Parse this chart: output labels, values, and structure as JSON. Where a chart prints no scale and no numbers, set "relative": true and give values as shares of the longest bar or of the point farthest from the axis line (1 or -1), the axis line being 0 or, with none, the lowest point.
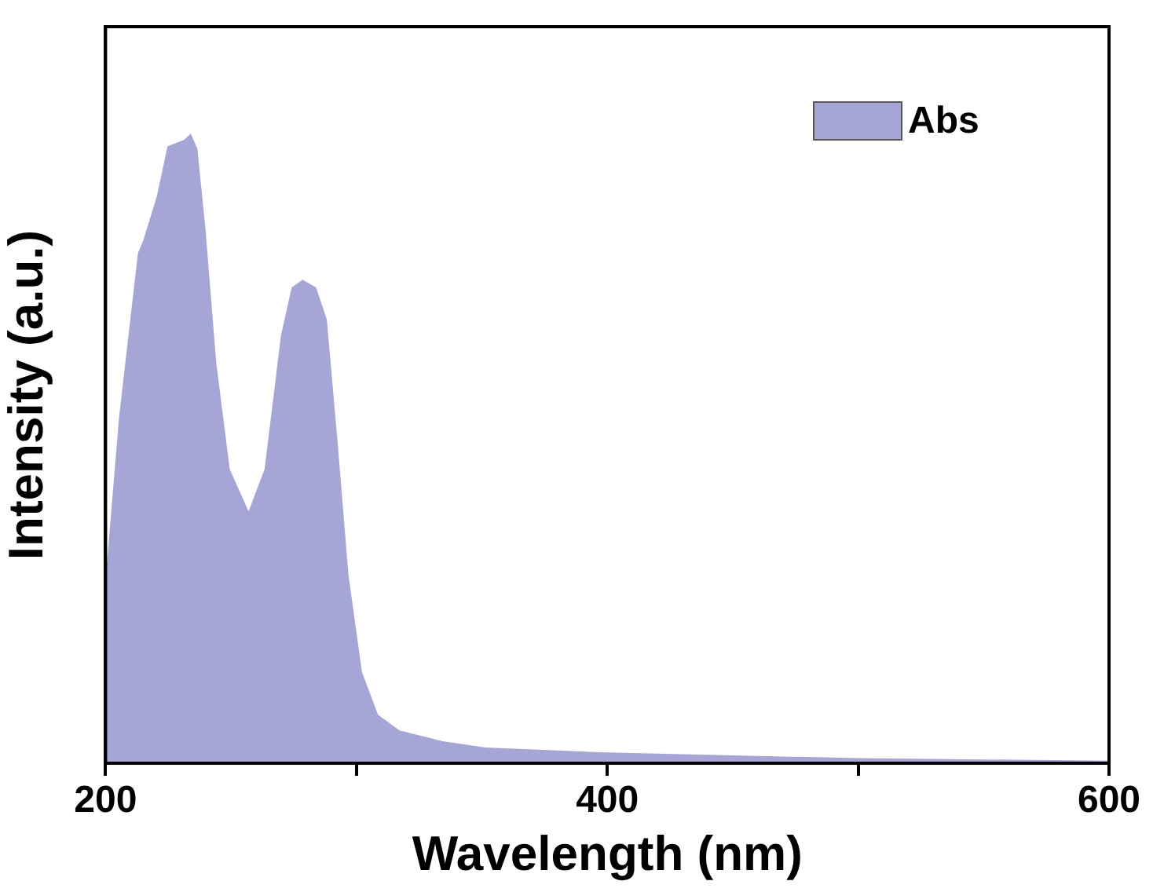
{
  "chart_data": {
    "type": "area",
    "xlabel": "Wavelength (nm)",
    "ylabel": "Intensity (a.u.)",
    "relative": true,
    "xlim": [
      200,
      600
    ],
    "xticks": [
      200,
      {
        "value": 300,
        "label": null
      },
      400,
      {
        "value": 500,
        "label": null
      },
      600
    ],
    "grid": false,
    "legend": "top right",
    "series": [
      {
        "name": "Abs",
        "color": "#a5a5d6",
        "x": [
          200,
          200.6,
          205.4,
          212.9,
          215,
          220.4,
          224.7,
          231.2,
          234,
          236.6,
          239.8,
          244.1,
          249.5,
          257,
          263.4,
          269.9,
          274.2,
          278.5,
          283.9,
          288.2,
          292.5,
          296.8,
          302.2,
          308.6,
          317.2,
          334.4,
          351.6,
          400,
          500,
          600
        ],
        "values": [
          0.3,
          0.32,
          0.55,
          0.81,
          0.83,
          0.9,
          0.98,
          0.99,
          1,
          0.976,
          0.85,
          0.637,
          0.467,
          0.4,
          0.467,
          0.679,
          0.756,
          0.768,
          0.756,
          0.705,
          0.51,
          0.3,
          0.145,
          0.077,
          0.052,
          0.035,
          0.025,
          0.017,
          0.008,
          0.004
        ]
      }
    ]
  }
}
